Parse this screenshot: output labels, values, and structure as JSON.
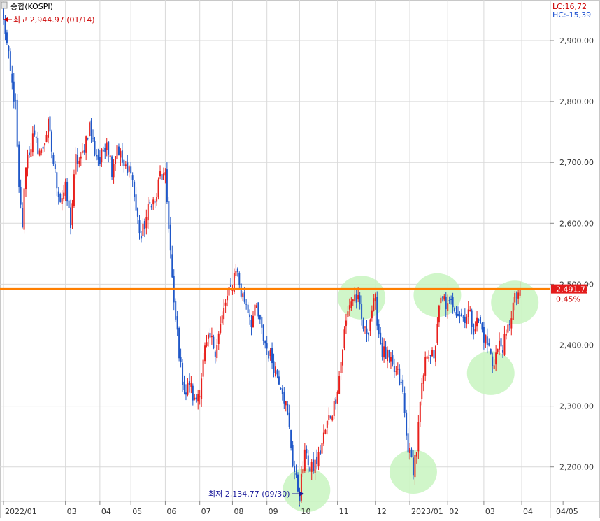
{
  "header": {
    "instrument_label": "종합(KOSPI)",
    "lc_label": "LC:16,72",
    "hc_label": "HC:-15,39"
  },
  "annotations": {
    "high_label": "최고 2,944.97 (01/14)",
    "low_label": "최저 2,134.77 (09/30)"
  },
  "current": {
    "price_label": "2,491.71",
    "change_label": "0.45%"
  },
  "colors": {
    "up": "#e8201c",
    "down": "#1f57c8",
    "grid": "#d9d9d9",
    "resistance": "#ff7f00",
    "highlight": "#c8f5c0",
    "high_label": "#cc0000",
    "low_label": "#1a1a9a",
    "lc_label": "#cc0000",
    "hc_label": "#1a4fd0"
  },
  "chart_data": {
    "type": "candlestick",
    "y_axis": {
      "range": [
        2130,
        2960
      ],
      "ticks": [
        2200,
        2300,
        2400,
        2500,
        2600,
        2700,
        2800,
        2900
      ],
      "tick_labels": [
        "2,200.00",
        "2,300.00",
        "2,400.00",
        "2,500.00",
        "2,600.00",
        "2,700.00",
        "2,800.00",
        "2,900.00"
      ],
      "side": "right"
    },
    "x_axis": {
      "month_labels": [
        "2022/01",
        "03",
        "04",
        "05",
        "06",
        "07",
        "08",
        "09",
        "10",
        "11",
        "12",
        "2023/01",
        "02",
        "03",
        "04",
        "04/05"
      ],
      "month_index": [
        0,
        36,
        56,
        74,
        94,
        114,
        133,
        153,
        172,
        194,
        216,
        236,
        258,
        279,
        301,
        325
      ]
    },
    "grid": true,
    "resistance_level": 2492,
    "high": {
      "value": 2944.97,
      "date": "01/14"
    },
    "low": {
      "value": 2134.77,
      "date": "09/30"
    },
    "last_close": 2491.71,
    "last_change_pct": 0.45,
    "highlight_circles": [
      {
        "index": 176,
        "value": 2162
      },
      {
        "index": 208,
        "value": 2478
      },
      {
        "index": 238,
        "value": 2192
      },
      {
        "index": 252,
        "value": 2482
      },
      {
        "index": 283,
        "value": 2354
      },
      {
        "index": 297,
        "value": 2470
      }
    ],
    "series": [
      {
        "t": 0,
        "v": 2940
      },
      {
        "t": 4,
        "v": 2845
      },
      {
        "t": 7,
        "v": 2790
      },
      {
        "t": 9,
        "v": 2650
      },
      {
        "t": 11,
        "v": 2598
      },
      {
        "t": 13,
        "v": 2700
      },
      {
        "t": 17,
        "v": 2740
      },
      {
        "t": 22,
        "v": 2715
      },
      {
        "t": 26,
        "v": 2760
      },
      {
        "t": 30,
        "v": 2680
      },
      {
        "t": 33,
        "v": 2640
      },
      {
        "t": 36,
        "v": 2655
      },
      {
        "t": 39,
        "v": 2600
      },
      {
        "t": 42,
        "v": 2705
      },
      {
        "t": 45,
        "v": 2700
      },
      {
        "t": 48,
        "v": 2740
      },
      {
        "t": 50,
        "v": 2760
      },
      {
        "t": 53,
        "v": 2720
      },
      {
        "t": 56,
        "v": 2700
      },
      {
        "t": 60,
        "v": 2740
      },
      {
        "t": 63,
        "v": 2690
      },
      {
        "t": 66,
        "v": 2730
      },
      {
        "t": 69,
        "v": 2700
      },
      {
        "t": 72,
        "v": 2680
      },
      {
        "t": 74,
        "v": 2695
      },
      {
        "t": 77,
        "v": 2620
      },
      {
        "t": 80,
        "v": 2575
      },
      {
        "t": 83,
        "v": 2610
      },
      {
        "t": 86,
        "v": 2640
      },
      {
        "t": 88,
        "v": 2630
      },
      {
        "t": 91,
        "v": 2680
      },
      {
        "t": 94,
        "v": 2670
      },
      {
        "t": 96,
        "v": 2600
      },
      {
        "t": 99,
        "v": 2460
      },
      {
        "t": 101,
        "v": 2420
      },
      {
        "t": 103,
        "v": 2360
      },
      {
        "t": 106,
        "v": 2320
      },
      {
        "t": 108,
        "v": 2340
      },
      {
        "t": 111,
        "v": 2305
      },
      {
        "t": 114,
        "v": 2330
      },
      {
        "t": 117,
        "v": 2390
      },
      {
        "t": 120,
        "v": 2410
      },
      {
        "t": 123,
        "v": 2395
      },
      {
        "t": 126,
        "v": 2430
      },
      {
        "t": 129,
        "v": 2470
      },
      {
        "t": 132,
        "v": 2490
      },
      {
        "t": 135,
        "v": 2530
      },
      {
        "t": 138,
        "v": 2485
      },
      {
        "t": 141,
        "v": 2470
      },
      {
        "t": 144,
        "v": 2440
      },
      {
        "t": 147,
        "v": 2460
      },
      {
        "t": 150,
        "v": 2420
      },
      {
        "t": 153,
        "v": 2395
      },
      {
        "t": 156,
        "v": 2375
      },
      {
        "t": 159,
        "v": 2355
      },
      {
        "t": 162,
        "v": 2330
      },
      {
        "t": 164,
        "v": 2300
      },
      {
        "t": 166,
        "v": 2260
      },
      {
        "t": 168,
        "v": 2210
      },
      {
        "t": 170,
        "v": 2175
      },
      {
        "t": 172,
        "v": 2155
      },
      {
        "t": 174,
        "v": 2200
      },
      {
        "t": 176,
        "v": 2230
      },
      {
        "t": 178,
        "v": 2190
      },
      {
        "t": 180,
        "v": 2200
      },
      {
        "t": 183,
        "v": 2215
      },
      {
        "t": 186,
        "v": 2250
      },
      {
        "t": 189,
        "v": 2280
      },
      {
        "t": 192,
        "v": 2300
      },
      {
        "t": 195,
        "v": 2350
      },
      {
        "t": 198,
        "v": 2420
      },
      {
        "t": 201,
        "v": 2470
      },
      {
        "t": 204,
        "v": 2480
      },
      {
        "t": 206,
        "v": 2470
      },
      {
        "t": 208,
        "v": 2440
      },
      {
        "t": 210,
        "v": 2420
      },
      {
        "t": 212,
        "v": 2430
      },
      {
        "t": 214,
        "v": 2460
      },
      {
        "t": 216,
        "v": 2470
      },
      {
        "t": 218,
        "v": 2420
      },
      {
        "t": 220,
        "v": 2390
      },
      {
        "t": 223,
        "v": 2380
      },
      {
        "t": 226,
        "v": 2360
      },
      {
        "t": 229,
        "v": 2350
      },
      {
        "t": 232,
        "v": 2320
      },
      {
        "t": 234,
        "v": 2250
      },
      {
        "t": 236,
        "v": 2220
      },
      {
        "t": 238,
        "v": 2200
      },
      {
        "t": 240,
        "v": 2230
      },
      {
        "t": 242,
        "v": 2300
      },
      {
        "t": 244,
        "v": 2350
      },
      {
        "t": 246,
        "v": 2390
      },
      {
        "t": 248,
        "v": 2390
      },
      {
        "t": 250,
        "v": 2370
      },
      {
        "t": 252,
        "v": 2440
      },
      {
        "t": 254,
        "v": 2470
      },
      {
        "t": 256,
        "v": 2475
      },
      {
        "t": 258,
        "v": 2460
      },
      {
        "t": 261,
        "v": 2470
      },
      {
        "t": 264,
        "v": 2455
      },
      {
        "t": 267,
        "v": 2445
      },
      {
        "t": 270,
        "v": 2455
      },
      {
        "t": 273,
        "v": 2430
      },
      {
        "t": 276,
        "v": 2440
      },
      {
        "t": 279,
        "v": 2415
      },
      {
        "t": 282,
        "v": 2395
      },
      {
        "t": 284,
        "v": 2370
      },
      {
        "t": 286,
        "v": 2385
      },
      {
        "t": 288,
        "v": 2400
      },
      {
        "t": 290,
        "v": 2400
      },
      {
        "t": 292,
        "v": 2410
      },
      {
        "t": 294,
        "v": 2440
      },
      {
        "t": 296,
        "v": 2465
      },
      {
        "t": 298,
        "v": 2482
      },
      {
        "t": 300,
        "v": 2492
      }
    ]
  }
}
